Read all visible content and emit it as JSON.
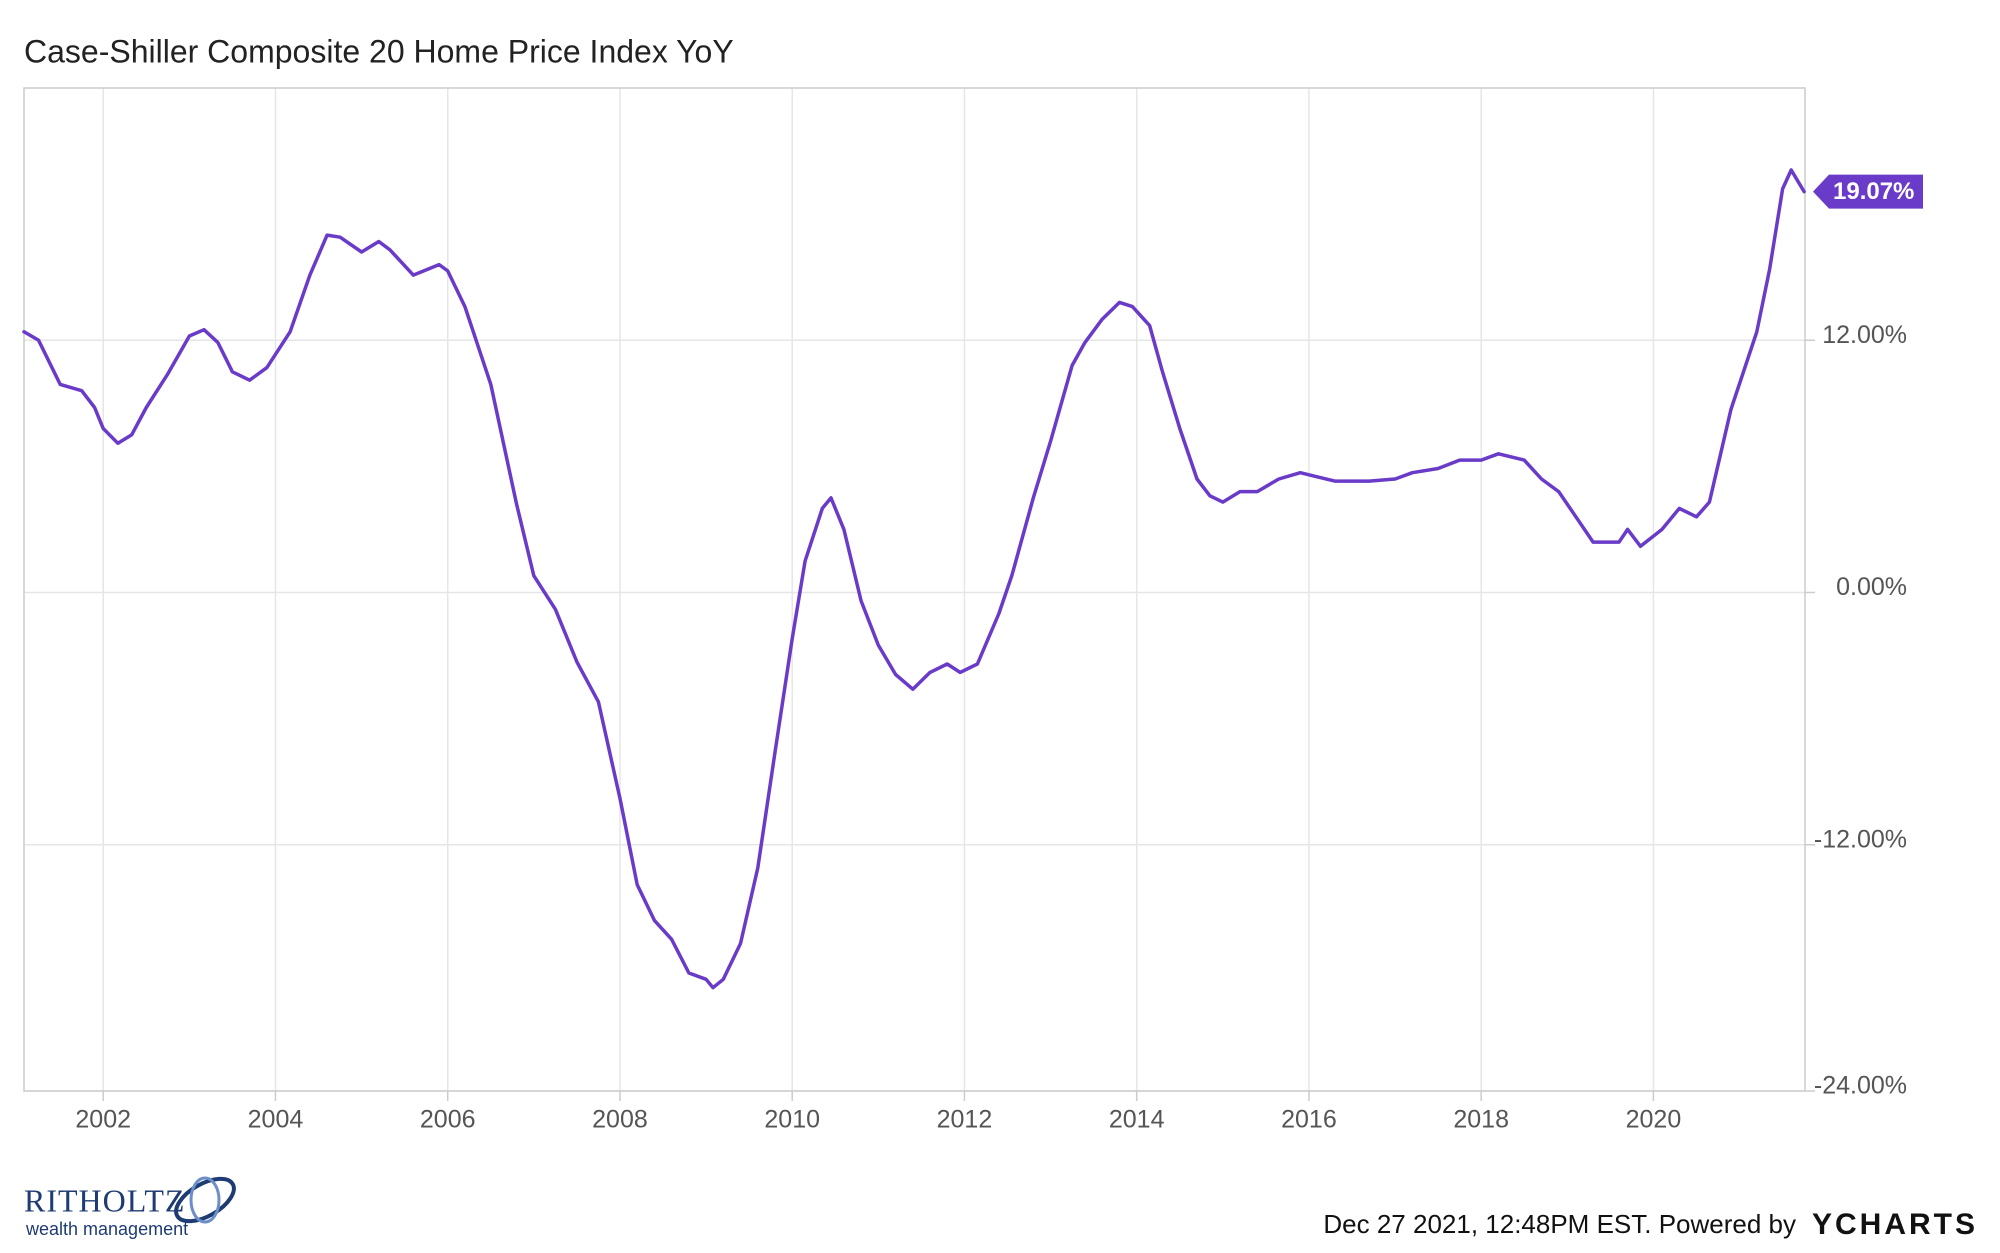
{
  "chart_data": {
    "type": "line",
    "title": "Case-Shiller Composite 20 Home Price Index YoY",
    "color": "#6a3bc8",
    "grid": true,
    "xlim": [
      2001.08,
      2021.76
    ],
    "xticks": [
      2002,
      2004,
      2006,
      2008,
      2010,
      2012,
      2014,
      2016,
      2018,
      2020
    ],
    "ylim": [
      -24,
      24
    ],
    "yticks": [
      {
        "value": -24,
        "label": "-24.00%"
      },
      {
        "value": -12,
        "label": "-12.00%"
      },
      {
        "value": 0,
        "label": "0.00%"
      },
      {
        "value": 12,
        "label": "12.00%"
      }
    ],
    "x": [
      2001.08,
      2001.25,
      2001.5,
      2001.75,
      2001.9,
      2002.0,
      2002.17,
      2002.33,
      2002.5,
      2002.75,
      2003.0,
      2003.17,
      2003.33,
      2003.5,
      2003.7,
      2003.9,
      2004.17,
      2004.4,
      2004.6,
      2004.75,
      2005.0,
      2005.2,
      2005.33,
      2005.6,
      2005.9,
      2006.0,
      2006.2,
      2006.5,
      2006.8,
      2007.0,
      2007.25,
      2007.5,
      2007.75,
      2008.0,
      2008.2,
      2008.4,
      2008.6,
      2008.8,
      2009.0,
      2009.08,
      2009.2,
      2009.4,
      2009.6,
      2009.8,
      2010.0,
      2010.15,
      2010.35,
      2010.45,
      2010.6,
      2010.8,
      2011.0,
      2011.2,
      2011.4,
      2011.6,
      2011.8,
      2011.95,
      2012.15,
      2012.4,
      2012.55,
      2012.8,
      2013.0,
      2013.25,
      2013.4,
      2013.6,
      2013.8,
      2013.95,
      2014.15,
      2014.3,
      2014.5,
      2014.7,
      2014.85,
      2015.0,
      2015.2,
      2015.4,
      2015.65,
      2015.9,
      2016.1,
      2016.3,
      2016.7,
      2017.0,
      2017.2,
      2017.5,
      2017.75,
      2018.0,
      2018.2,
      2018.5,
      2018.7,
      2018.9,
      2019.1,
      2019.3,
      2019.6,
      2019.7,
      2019.85,
      2020.1,
      2020.3,
      2020.5,
      2020.65,
      2020.9,
      2021.2,
      2021.35,
      2021.5,
      2021.6,
      2021.75
    ],
    "values": [
      12.4,
      12.0,
      9.9,
      9.6,
      8.8,
      7.8,
      7.1,
      7.5,
      8.8,
      10.4,
      12.2,
      12.5,
      11.9,
      10.5,
      10.1,
      10.7,
      12.4,
      15.1,
      17.0,
      16.9,
      16.2,
      16.7,
      16.3,
      15.1,
      15.6,
      15.3,
      13.6,
      9.9,
      4.2,
      0.8,
      -0.8,
      -3.3,
      -5.2,
      -9.8,
      -13.9,
      -15.6,
      -16.5,
      -18.1,
      -18.4,
      -18.8,
      -18.4,
      -16.7,
      -13.1,
      -7.6,
      -2.2,
      1.5,
      4.0,
      4.5,
      3.0,
      -0.4,
      -2.5,
      -3.9,
      -4.6,
      -3.8,
      -3.4,
      -3.8,
      -3.4,
      -1.0,
      0.8,
      4.5,
      7.2,
      10.8,
      11.9,
      13.0,
      13.8,
      13.6,
      12.7,
      10.5,
      7.8,
      5.4,
      4.6,
      4.3,
      4.8,
      4.8,
      5.4,
      5.7,
      5.5,
      5.3,
      5.3,
      5.4,
      5.7,
      5.9,
      6.3,
      6.3,
      6.6,
      6.3,
      5.4,
      4.8,
      3.6,
      2.4,
      2.4,
      3.0,
      2.2,
      3.0,
      4.0,
      3.6,
      4.3,
      8.7,
      12.4,
      15.4,
      19.2,
      20.1,
      19.07
    ],
    "value_labels": [
      null,
      null,
      null,
      null,
      null,
      null,
      null,
      null,
      null,
      null,
      null,
      null,
      null,
      null,
      null,
      null,
      null,
      null,
      null,
      null,
      null,
      null,
      null,
      null,
      null,
      null,
      null,
      null,
      null,
      null,
      null,
      null,
      null,
      null,
      null,
      null,
      null,
      null,
      null,
      null,
      null,
      null,
      null,
      null,
      null,
      null,
      null,
      null,
      null,
      null,
      null,
      null,
      null,
      null,
      null,
      null,
      null,
      null,
      null,
      null,
      null,
      null,
      null,
      null,
      null,
      null,
      null,
      null,
      null,
      null,
      null,
      null,
      null,
      null,
      null,
      null,
      null,
      null,
      null,
      null,
      null,
      null,
      null,
      null,
      null,
      null,
      null,
      null,
      null,
      null,
      null,
      null,
      null,
      null,
      null,
      null,
      null,
      null,
      null,
      null,
      null,
      null,
      "19.07%"
    ]
  },
  "footer": {
    "timestamp": "Dec 27 2021, 12:48PM EST. Powered by",
    "brand": "YCHARTS",
    "logo_name": "RITHOLTZ",
    "logo_sub": "wealth management"
  }
}
